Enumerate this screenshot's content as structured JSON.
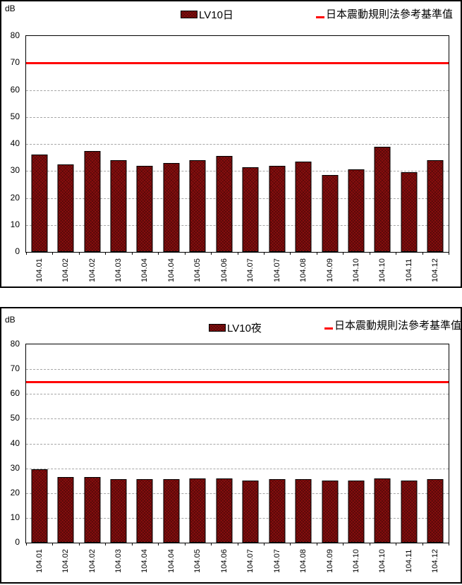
{
  "chart_data": [
    {
      "type": "bar",
      "unit_label": "dB",
      "legend_series": "LV10日",
      "legend_reference": "日本震動規則法參考基準值",
      "categories": [
        "104.01",
        "104.02",
        "104.02",
        "104.03",
        "104.04",
        "104.04",
        "104.05",
        "104.06",
        "104.07",
        "104.07",
        "104.08",
        "104.09",
        "104.10",
        "104.10",
        "104.11",
        "104.12"
      ],
      "values": [
        36,
        32.5,
        37.5,
        34,
        32,
        33,
        34,
        35.5,
        31.5,
        32,
        33.5,
        28.5,
        30.5,
        39,
        29.5,
        34
      ],
      "reference_value": 70,
      "ylim": [
        0,
        80
      ],
      "yticks": [
        0,
        10,
        20,
        30,
        40,
        50,
        60,
        70,
        80
      ],
      "legend_position": "top",
      "grid": "horizontal-dashed",
      "bar_color": "#8B0E0E",
      "reference_color": "#FF0000"
    },
    {
      "type": "bar",
      "unit_label": "dB",
      "legend_series": "LV10夜",
      "legend_reference": "日本震動規則法參考基準值",
      "categories": [
        "104.01",
        "104.02",
        "104.02",
        "104.03",
        "104.04",
        "104.04",
        "104.05",
        "104.06",
        "104.07",
        "104.07",
        "104.08",
        "104.09",
        "104.10",
        "104.10",
        "104.11",
        "104.12"
      ],
      "values": [
        29.5,
        26.5,
        26.5,
        25.5,
        25.5,
        25.5,
        26,
        26,
        25,
        25.5,
        25.5,
        25,
        25,
        26,
        25,
        25.5
      ],
      "reference_value": 65,
      "ylim": [
        0,
        80
      ],
      "yticks": [
        0,
        10,
        20,
        30,
        40,
        50,
        60,
        70,
        80
      ],
      "legend_position": "top",
      "grid": "horizontal-dashed",
      "bar_color": "#8B0E0E",
      "reference_color": "#FF0000"
    }
  ]
}
